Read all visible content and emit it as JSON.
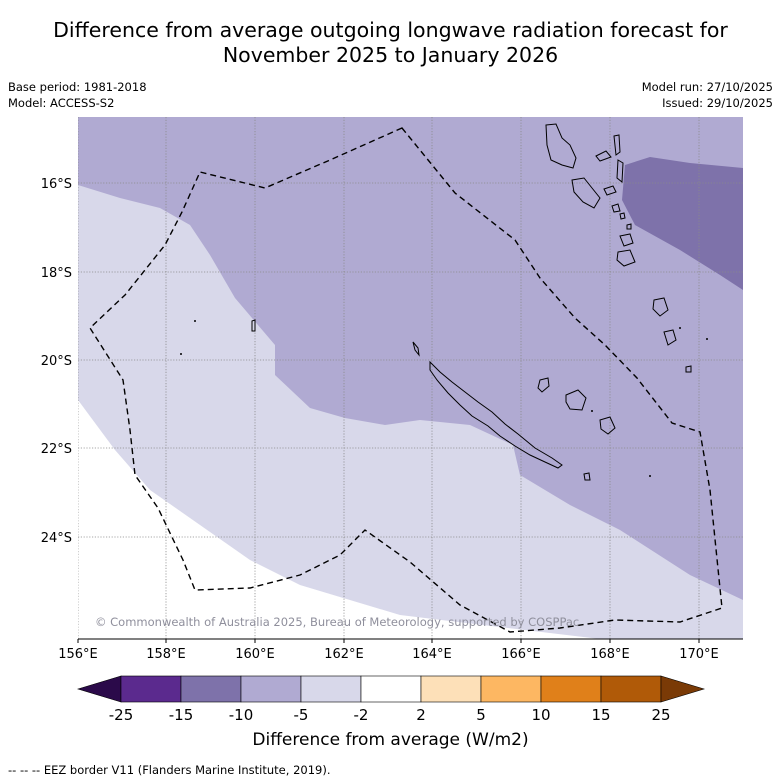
{
  "title": {
    "line1": "Difference from average outgoing longwave radiation forecast for",
    "line2": "November 2025 to January 2026"
  },
  "meta": {
    "base_period": "Base period: 1981-2018",
    "model": "Model: ACCESS-S2",
    "model_run": "Model run: 27/10/2025",
    "issued": "Issued: 29/10/2025"
  },
  "map": {
    "lon_ticks": [
      "156°E",
      "158°E",
      "160°E",
      "162°E",
      "164°E",
      "166°E",
      "168°E",
      "170°E"
    ],
    "lat_ticks": [
      "16°S",
      "18°S",
      "20°S",
      "22°S",
      "24°S"
    ],
    "copyright": "© Commonwealth of Australia 2025, Bureau of Meteorology, supported by COSPPac"
  },
  "colorbar": {
    "title": "Difference from average (W/m2)",
    "tick_labels": [
      "-25",
      "-15",
      "-10",
      "-5",
      "-2",
      "2",
      "5",
      "10",
      "15",
      "25"
    ],
    "colors": [
      "#5b2a8e",
      "#7e72aa",
      "#b0aad2",
      "#d8d8ea",
      "#ffffff",
      "#fde0b8",
      "#fdb762",
      "#e0801a",
      "#b05a08"
    ],
    "under_color": "#2b0a4a",
    "over_color": "#7a3a06"
  },
  "footnote": "--  --  -- EEZ border V11 (Flanders Marine Institute, 2019)."
}
